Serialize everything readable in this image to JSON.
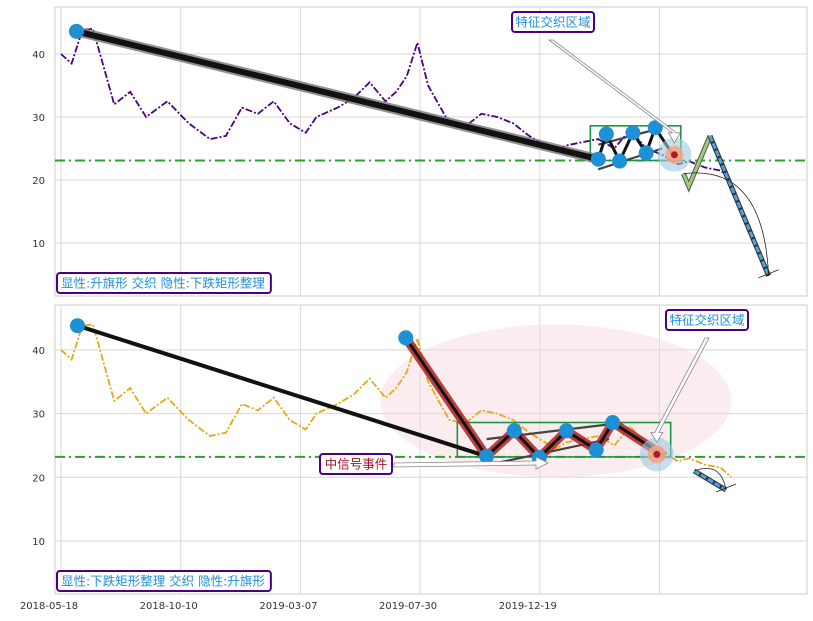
{
  "chart_data": [
    {
      "type": "line",
      "panel": "top",
      "annotation_box": "显性:升旗形 交织 隐性:下跌矩形整理",
      "region_label": "特征交织区域",
      "yticks": [
        10,
        20,
        30,
        40
      ],
      "ylim": [
        1,
        46
      ],
      "hline": 23.1,
      "grid": true,
      "colors": {
        "series": "#4b0082",
        "hline": "#2ca02c",
        "trend": "#111111",
        "forecast_up": "#9acd7a",
        "forecast_down": "#4aa3df",
        "marker": "#1f8fd6"
      },
      "series": [
        {
          "values": [
            [
              0.0,
              40.0
            ],
            [
              2.0,
              38.5
            ],
            [
              4.0,
              43.8
            ],
            [
              6.0,
              44.0
            ],
            [
              8.0,
              38.0
            ],
            [
              10.0,
              32.0
            ],
            [
              13.0,
              34.0
            ],
            [
              16.0,
              30.0
            ],
            [
              20.0,
              32.5
            ],
            [
              24.0,
              29.0
            ],
            [
              28.0,
              26.5
            ],
            [
              31.0,
              27.0
            ],
            [
              34.0,
              31.5
            ],
            [
              37.0,
              30.5
            ],
            [
              40.0,
              32.5
            ],
            [
              43.0,
              29.0
            ],
            [
              46.0,
              27.5
            ],
            [
              48.0,
              30.0
            ],
            [
              52.0,
              31.5
            ],
            [
              55.0,
              33.0
            ],
            [
              58.0,
              35.5
            ],
            [
              61.0,
              32.5
            ],
            [
              63.0,
              34.0
            ],
            [
              65.0,
              36.5
            ],
            [
              67.0,
              41.8
            ],
            [
              69.0,
              35.0
            ],
            [
              71.0,
              32.0
            ],
            [
              73.0,
              29.0
            ],
            [
              76.0,
              28.5
            ],
            [
              79.0,
              30.5
            ],
            [
              82.0,
              30.0
            ],
            [
              85.0,
              29.0
            ],
            [
              88.0,
              27.0
            ],
            [
              91.0,
              25.5
            ],
            [
              93.0,
              24.5
            ],
            [
              95.0,
              25.5
            ],
            [
              98.0,
              26.0
            ],
            [
              101.0,
              26.5
            ],
            [
              104.0,
              25.0
            ],
            [
              107.0,
              28.0
            ],
            [
              110.0,
              25.0
            ],
            [
              113.0,
              24.0
            ],
            [
              116.0,
              22.5
            ],
            [
              118.0,
              23.0
            ],
            [
              121.0,
              22.0
            ],
            [
              124.0,
              21.5
            ],
            [
              126.0,
              20.0
            ]
          ]
        }
      ],
      "trend_lines": [
        {
          "points": [
            [
              2.9,
              43.6
            ],
            [
              101.0,
              23.3
            ]
          ]
        },
        {
          "points": [
            [
              101.0,
              23.3
            ],
            [
              102.5,
              27.3
            ],
            [
              105.0,
              23.0
            ],
            [
              107.5,
              27.5
            ],
            [
              110.0,
              24.3
            ],
            [
              111.7,
              28.3
            ],
            [
              115.3,
              23.6
            ]
          ]
        }
      ],
      "channel_lines": [
        {
          "points": [
            [
              101.0,
              21.7
            ],
            [
              113.0,
              25.0
            ]
          ]
        },
        {
          "points": [
            [
              101.0,
              25.6
            ],
            [
              113.0,
              28.3
            ]
          ]
        }
      ],
      "markers": [
        [
          2.9,
          43.6
        ],
        [
          101.0,
          23.3
        ],
        [
          102.5,
          27.3
        ],
        [
          105.0,
          23.0
        ],
        [
          107.5,
          27.5
        ],
        [
          110.0,
          24.3
        ],
        [
          111.7,
          28.3
        ]
      ],
      "rect": {
        "x": [
          99.5,
          116.5
        ],
        "y": [
          23.1,
          28.6
        ]
      },
      "highlight": {
        "x": 115.3,
        "y": 24.0
      },
      "forecast_up": [
        [
          117.0,
          21.0
        ],
        [
          118.0,
          19.0
        ],
        [
          122.0,
          27.0
        ]
      ],
      "forecast_down": [
        [
          122.0,
          27.0
        ],
        [
          133.0,
          4.8
        ]
      ],
      "arc_end": [
        133.0,
        4.8
      ]
    },
    {
      "type": "line",
      "panel": "bottom",
      "annotation_box": "显性:下跌矩形整理 交织 隐性:升旗形",
      "region_label": "特征交织区域",
      "event_label": "中信号事件",
      "yticks": [
        10,
        20,
        30,
        40
      ],
      "ylim": [
        1,
        47
      ],
      "hline": 23.2,
      "grid": true,
      "xticks": [
        "2018-05-18",
        "2018-10-10",
        "2019-03-07",
        "2019-07-30",
        "2019-12-19"
      ],
      "colors": {
        "series": "#e6a817",
        "hline": "#2ca02c",
        "trend": "#111111",
        "band": "#b02020",
        "forecast_down": "#4aa3df",
        "marker": "#1f8fd6"
      },
      "series": [
        {
          "values": [
            [
              0.0,
              40.0
            ],
            [
              2.0,
              38.5
            ],
            [
              4.0,
              43.8
            ],
            [
              6.0,
              44.0
            ],
            [
              8.0,
              38.0
            ],
            [
              10.0,
              32.0
            ],
            [
              13.0,
              34.0
            ],
            [
              16.0,
              30.0
            ],
            [
              20.0,
              32.5
            ],
            [
              24.0,
              29.0
            ],
            [
              28.0,
              26.5
            ],
            [
              31.0,
              27.0
            ],
            [
              34.0,
              31.5
            ],
            [
              37.0,
              30.5
            ],
            [
              40.0,
              32.5
            ],
            [
              43.0,
              29.0
            ],
            [
              46.0,
              27.5
            ],
            [
              48.0,
              30.0
            ],
            [
              52.0,
              31.5
            ],
            [
              55.0,
              33.0
            ],
            [
              58.0,
              35.5
            ],
            [
              61.0,
              32.5
            ],
            [
              63.0,
              34.0
            ],
            [
              65.0,
              36.5
            ],
            [
              67.0,
              41.8
            ],
            [
              69.0,
              35.0
            ],
            [
              71.0,
              32.0
            ],
            [
              73.0,
              29.0
            ],
            [
              76.0,
              28.5
            ],
            [
              79.0,
              30.5
            ],
            [
              82.0,
              30.0
            ],
            [
              85.0,
              29.0
            ],
            [
              88.0,
              27.0
            ],
            [
              91.0,
              25.5
            ],
            [
              93.0,
              24.5
            ],
            [
              95.0,
              25.5
            ],
            [
              98.0,
              26.0
            ],
            [
              101.0,
              26.5
            ],
            [
              104.0,
              25.0
            ],
            [
              107.0,
              28.0
            ],
            [
              110.0,
              25.0
            ],
            [
              113.0,
              24.0
            ],
            [
              116.0,
              22.5
            ],
            [
              118.0,
              23.0
            ],
            [
              121.0,
              22.0
            ],
            [
              124.0,
              21.5
            ],
            [
              126.0,
              20.0
            ]
          ]
        }
      ],
      "trend_lines": [
        {
          "points": [
            [
              3.1,
              43.8
            ],
            [
              80.0,
              23.3
            ]
          ]
        },
        {
          "points": [
            [
              64.8,
              41.9
            ],
            [
              80.0,
              23.3
            ]
          ]
        },
        {
          "points": [
            [
              80.0,
              23.3
            ],
            [
              85.2,
              27.3
            ],
            [
              89.9,
              23.1
            ],
            [
              95.0,
              27.3
            ],
            [
              100.6,
              24.3
            ],
            [
              103.7,
              28.6
            ],
            [
              113.5,
              23.3
            ]
          ]
        }
      ],
      "channel_lines": [
        {
          "points": [
            [
              80.0,
              21.9
            ],
            [
              103.0,
              26.0
            ]
          ]
        },
        {
          "points": [
            [
              80.0,
              26.0
            ],
            [
              103.0,
              28.3
            ]
          ]
        }
      ],
      "markers": [
        [
          3.1,
          43.8
        ],
        [
          64.8,
          41.9
        ],
        [
          80.0,
          23.3
        ],
        [
          85.2,
          27.3
        ],
        [
          89.9,
          23.1
        ],
        [
          95.0,
          27.3
        ],
        [
          100.6,
          24.3
        ],
        [
          103.7,
          28.6
        ]
      ],
      "rect": {
        "x": [
          74.5,
          114.6
        ],
        "y": [
          23.2,
          28.6
        ]
      },
      "highlight": {
        "x": 112.0,
        "y": 23.6
      },
      "ellipse": {
        "cx": 93.0,
        "cy": 32.0,
        "rx": 33.0,
        "ry": 12.0
      },
      "forecast_down": [
        [
          119.0,
          21.0
        ],
        [
          125.0,
          18.0
        ]
      ],
      "arc_end": [
        125.0,
        18.0
      ]
    }
  ]
}
